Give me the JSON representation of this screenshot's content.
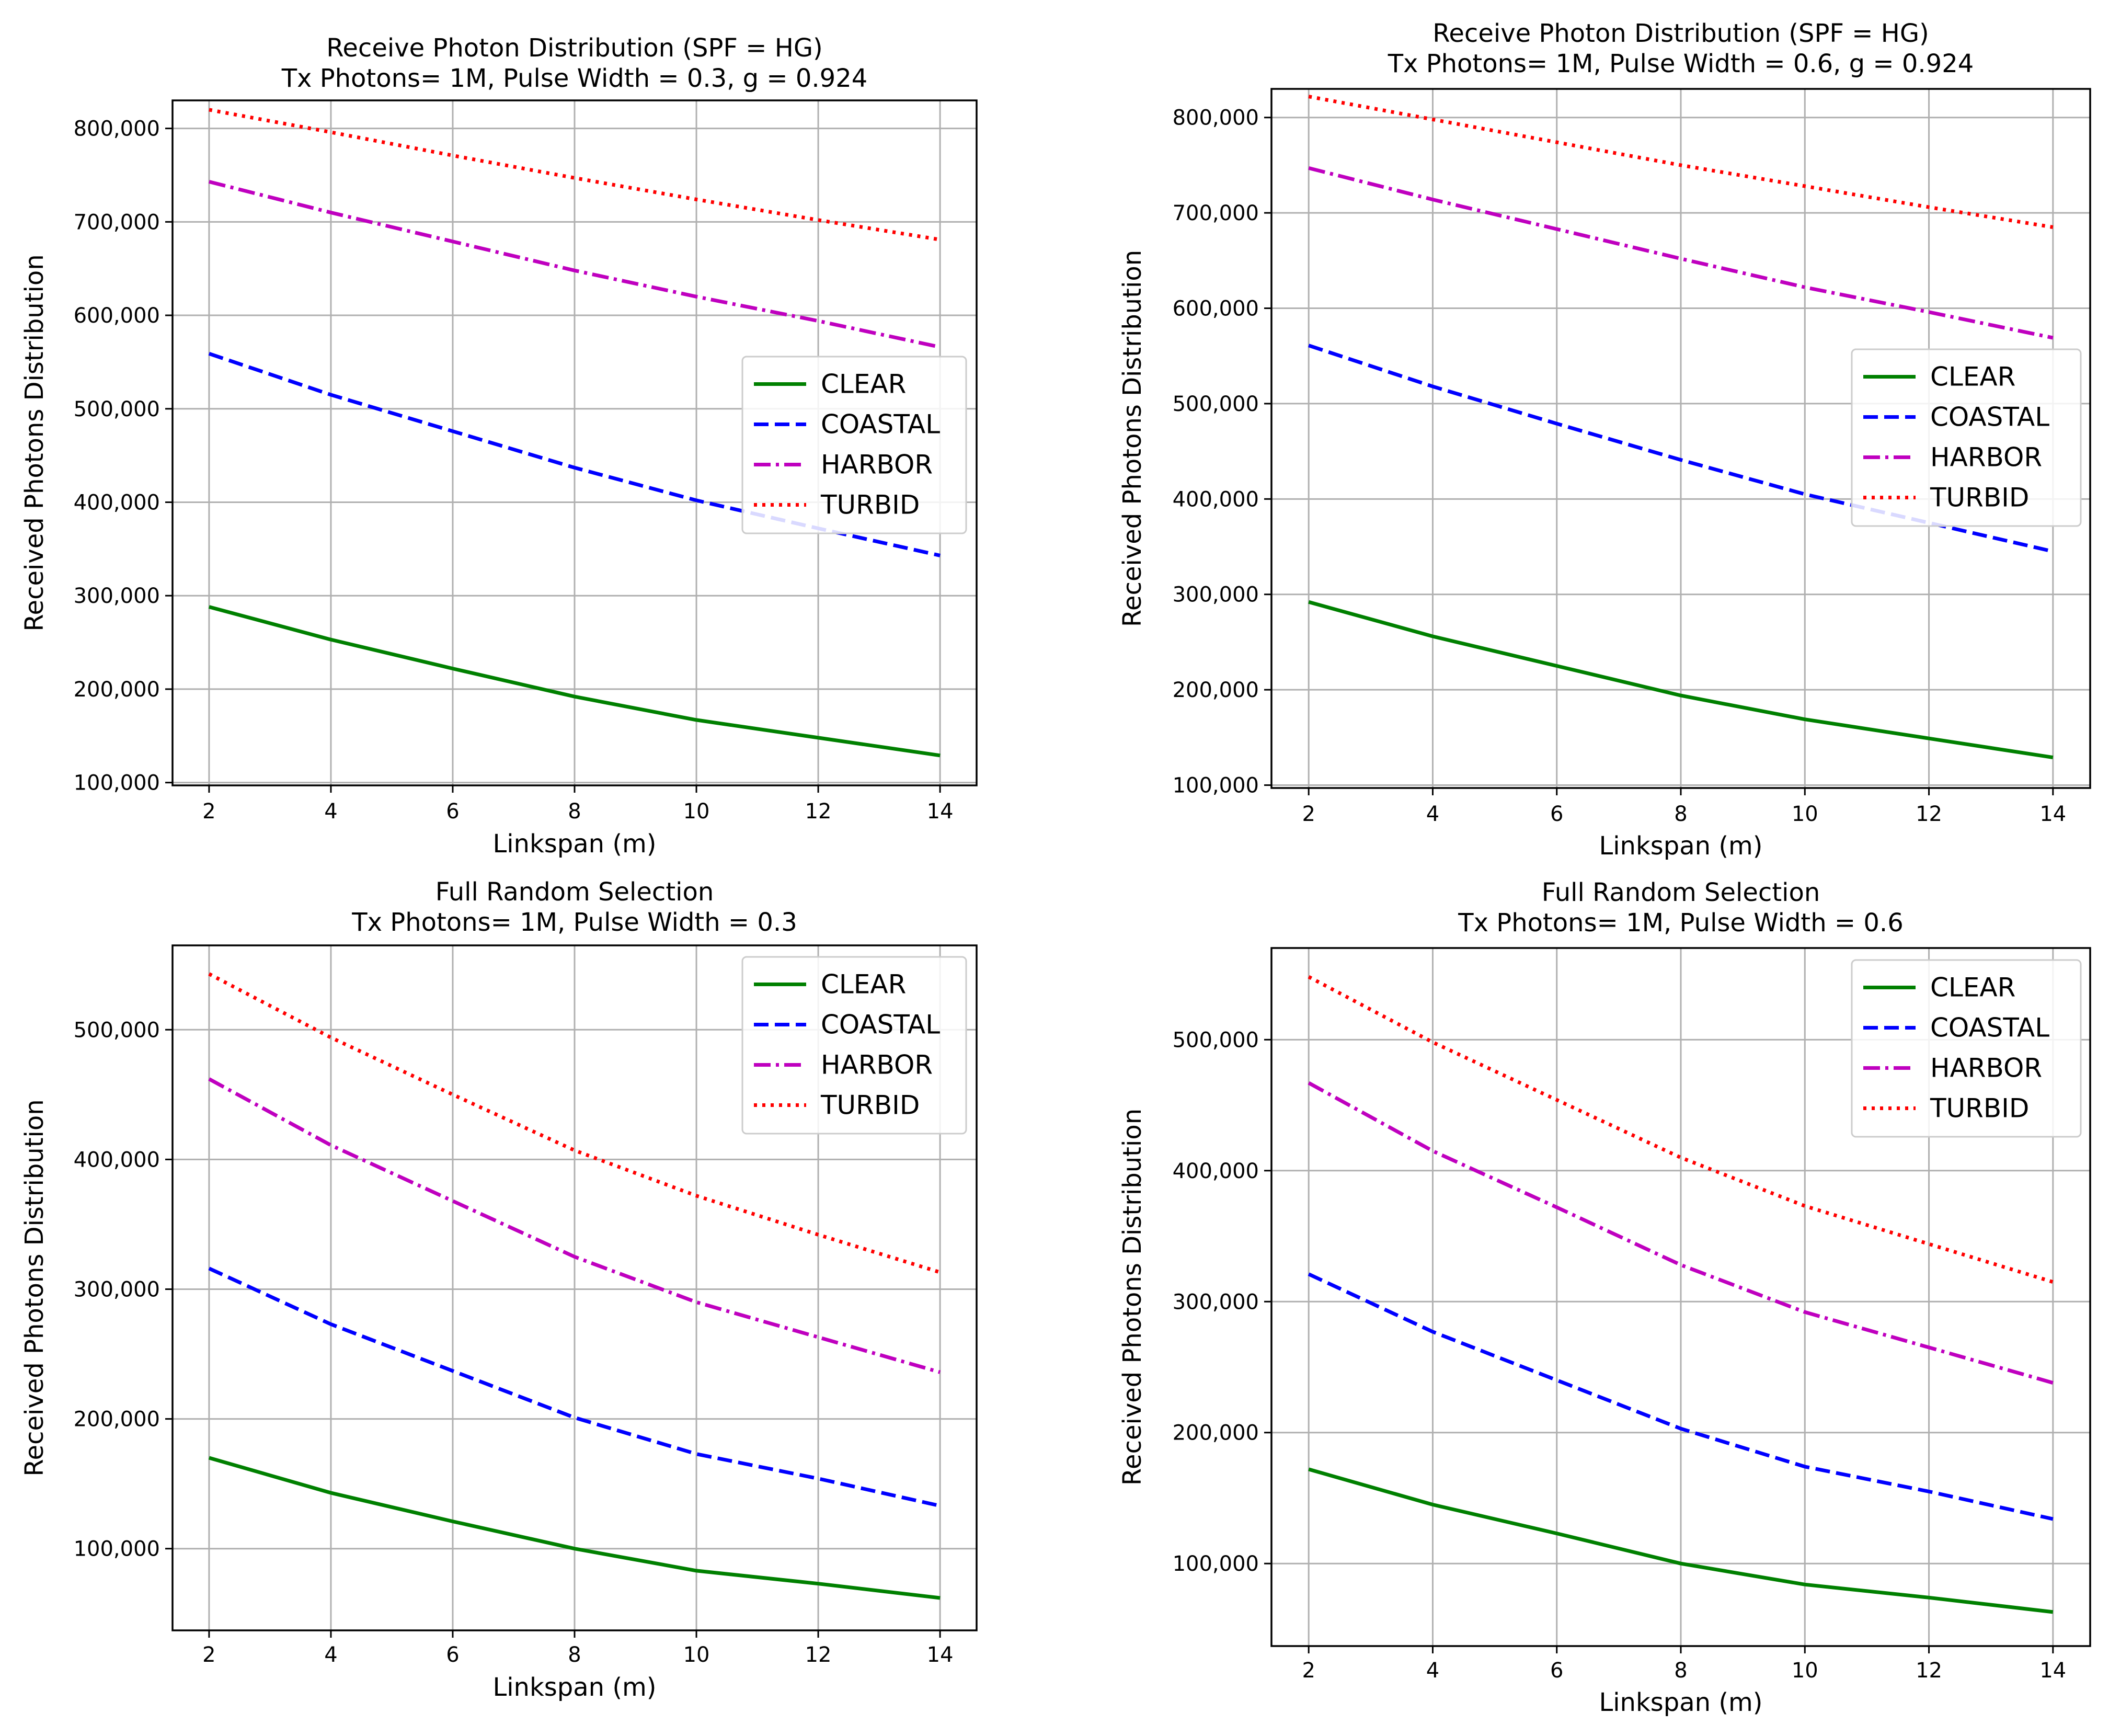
{
  "chart_data": [
    {
      "type": "line",
      "title": "Receive Photon Distribution (SPF = HG)",
      "subtitle": "Tx Photons= 1M, Pulse Width = 0.3, g = 0.924",
      "xlabel": "Linkspan (m)",
      "ylabel": "Received Photons Distribution",
      "x": [
        2,
        4,
        6,
        8,
        10,
        12,
        14
      ],
      "xlim": [
        1.4,
        14.6
      ],
      "ylim": [
        97000,
        830000
      ],
      "yticks": [
        100000,
        200000,
        300000,
        400000,
        500000,
        600000,
        700000,
        800000
      ],
      "ytick_labels": [
        "100,000",
        "200,000",
        "300,000",
        "400,000",
        "500,000",
        "600,000",
        "700,000",
        "800,000"
      ],
      "xticks": [
        2,
        4,
        6,
        8,
        10,
        12,
        14
      ],
      "xtick_labels": [
        "2",
        "4",
        "6",
        "8",
        "10",
        "12",
        "14"
      ],
      "grid": true,
      "legend_position": "center-right",
      "series": [
        {
          "name": "CLEAR",
          "values": [
            288000,
            253000,
            222000,
            192000,
            167000,
            148000,
            129000
          ],
          "color": "#008000",
          "style": "solid"
        },
        {
          "name": "COASTAL",
          "values": [
            559000,
            515000,
            476000,
            437000,
            402000,
            372000,
            343000
          ],
          "color": "#0000ff",
          "style": "dashed"
        },
        {
          "name": "HARBOR",
          "values": [
            743000,
            710000,
            679000,
            648000,
            620000,
            594000,
            566000
          ],
          "color": "#bf00bf",
          "style": "dashdot"
        },
        {
          "name": "TURBID",
          "values": [
            820000,
            796000,
            771000,
            747000,
            724000,
            702000,
            681000
          ],
          "color": "#ff0000",
          "style": "dotted"
        }
      ]
    },
    {
      "type": "line",
      "title": "Receive Photon Distribution (SPF = HG)",
      "subtitle": "Tx Photons= 1M, Pulse Width = 0.6, g = 0.924",
      "xlabel": "Linkspan (m)",
      "ylabel": "Received Photons Distribution",
      "x": [
        2,
        4,
        6,
        8,
        10,
        12,
        14
      ],
      "xlim": [
        1.4,
        14.6
      ],
      "ylim": [
        97000,
        830000
      ],
      "yticks": [
        100000,
        200000,
        300000,
        400000,
        500000,
        600000,
        700000,
        800000
      ],
      "ytick_labels": [
        "100,000",
        "200,000",
        "300,000",
        "400,000",
        "500,000",
        "600,000",
        "700,000",
        "800,000"
      ],
      "xticks": [
        2,
        4,
        6,
        8,
        10,
        12,
        14
      ],
      "xtick_labels": [
        "2",
        "4",
        "6",
        "8",
        "10",
        "12",
        "14"
      ],
      "grid": true,
      "legend_position": "center-right",
      "series": [
        {
          "name": "CLEAR",
          "values": [
            292000,
            256000,
            225000,
            194000,
            169000,
            149000,
            129000
          ],
          "color": "#008000",
          "style": "solid"
        },
        {
          "name": "COASTAL",
          "values": [
            561000,
            518000,
            479000,
            441000,
            405000,
            375000,
            345000
          ],
          "color": "#0000ff",
          "style": "dashed"
        },
        {
          "name": "HARBOR",
          "values": [
            747000,
            714000,
            683000,
            652000,
            622000,
            596000,
            569000
          ],
          "color": "#bf00bf",
          "style": "dashdot"
        },
        {
          "name": "TURBID",
          "values": [
            822000,
            798000,
            774000,
            750000,
            728000,
            706000,
            685000
          ],
          "color": "#ff0000",
          "style": "dotted"
        }
      ]
    },
    {
      "type": "line",
      "title": "Full Random Selection",
      "subtitle": "Tx Photons= 1M, Pulse Width = 0.3",
      "xlabel": "Linkspan (m)",
      "ylabel": "Received Photons Distribution",
      "x": [
        2,
        4,
        6,
        8,
        10,
        12,
        14
      ],
      "xlim": [
        1.4,
        14.6
      ],
      "ylim": [
        37000,
        565000
      ],
      "yticks": [
        100000,
        200000,
        300000,
        400000,
        500000
      ],
      "ytick_labels": [
        "100,000",
        "200,000",
        "300,000",
        "400,000",
        "500,000"
      ],
      "xticks": [
        2,
        4,
        6,
        8,
        10,
        12,
        14
      ],
      "xtick_labels": [
        "2",
        "4",
        "6",
        "8",
        "10",
        "12",
        "14"
      ],
      "grid": true,
      "legend_position": "top-right",
      "series": [
        {
          "name": "CLEAR",
          "values": [
            170000,
            143000,
            121000,
            100000,
            83000,
            73000,
            62000
          ],
          "color": "#008000",
          "style": "solid"
        },
        {
          "name": "COASTAL",
          "values": [
            316000,
            273000,
            237000,
            201000,
            173000,
            154000,
            133000
          ],
          "color": "#0000ff",
          "style": "dashed"
        },
        {
          "name": "HARBOR",
          "values": [
            462000,
            411000,
            368000,
            325000,
            290000,
            263000,
            236000
          ],
          "color": "#bf00bf",
          "style": "dashdot"
        },
        {
          "name": "TURBID",
          "values": [
            543000,
            494000,
            450000,
            407000,
            372000,
            342000,
            313000
          ],
          "color": "#ff0000",
          "style": "dotted"
        }
      ]
    },
    {
      "type": "line",
      "title": "Full Random Selection",
      "subtitle": "Tx Photons= 1M, Pulse Width = 0.6",
      "xlabel": "Linkspan (m)",
      "ylabel": "Received Photons Distribution",
      "x": [
        2,
        4,
        6,
        8,
        10,
        12,
        14
      ],
      "xlim": [
        1.4,
        14.6
      ],
      "ylim": [
        37000,
        570000
      ],
      "yticks": [
        100000,
        200000,
        300000,
        400000,
        500000
      ],
      "ytick_labels": [
        "100,000",
        "200,000",
        "300,000",
        "400,000",
        "500,000"
      ],
      "xticks": [
        2,
        4,
        6,
        8,
        10,
        12,
        14
      ],
      "xtick_labels": [
        "2",
        "4",
        "6",
        "8",
        "10",
        "12",
        "14"
      ],
      "grid": true,
      "legend_position": "top-right",
      "series": [
        {
          "name": "CLEAR",
          "values": [
            172000,
            145000,
            123000,
            100000,
            84000,
            74000,
            63000
          ],
          "color": "#008000",
          "style": "solid"
        },
        {
          "name": "COASTAL",
          "values": [
            321000,
            277000,
            240000,
            203000,
            174000,
            155000,
            134000
          ],
          "color": "#0000ff",
          "style": "dashed"
        },
        {
          "name": "HARBOR",
          "values": [
            467000,
            415000,
            372000,
            328000,
            292000,
            265000,
            238000
          ],
          "color": "#bf00bf",
          "style": "dashdot"
        },
        {
          "name": "TURBID",
          "values": [
            548000,
            498000,
            454000,
            410000,
            373000,
            344000,
            315000
          ],
          "color": "#ff0000",
          "style": "dotted"
        }
      ]
    }
  ]
}
